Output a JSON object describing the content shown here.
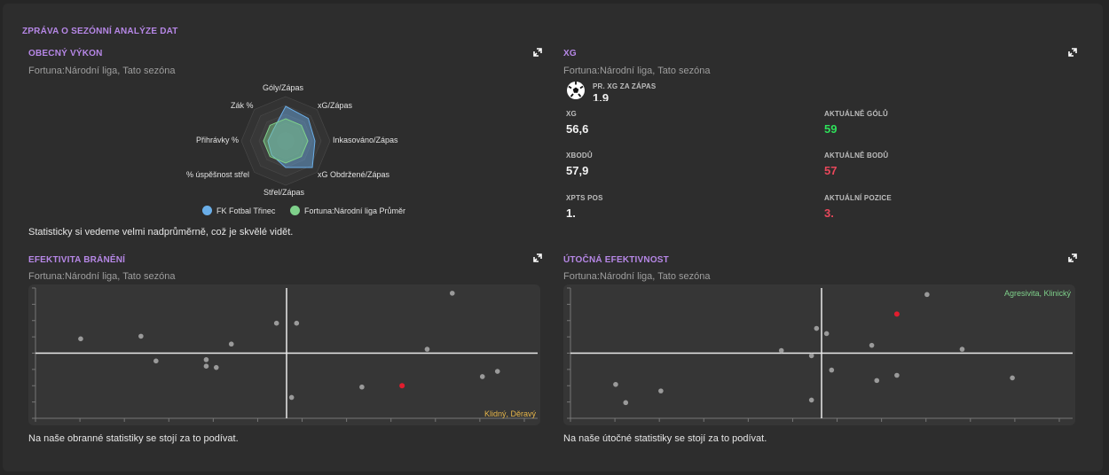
{
  "report": {
    "title": "ZPRÁVA O SEZÓNNÍ ANALÝZE DAT"
  },
  "general": {
    "title": "OBECNÝ VÝKON",
    "subtitle": "Fortuna:Národní liga, Tato sezóna",
    "axes": [
      "Góly/Zápas",
      "xG/Zápas",
      "Inkasováno/Zápas",
      "xG Obdržené/Zápas",
      "Střel/Zápas",
      "% úspěšnost střel",
      "Přihrávky %",
      "Zák %"
    ],
    "series": [
      {
        "name": "FK Fotbal Třinec",
        "color": "#6aaee8",
        "values": [
          0.78,
          0.72,
          0.66,
          0.85,
          0.6,
          0.45,
          0.4,
          0.38
        ]
      },
      {
        "name": "Fortuna:Národní liga Průměr",
        "color": "#7fd18b",
        "values": [
          0.5,
          0.5,
          0.5,
          0.5,
          0.5,
          0.5,
          0.5,
          0.5
        ]
      }
    ],
    "summary": "Statisticky si vedeme velmi nadprůměrně, což je skvělé vidět."
  },
  "xg": {
    "title": "XG",
    "subtitle": "Fortuna:Národní liga, Tato sezóna",
    "avg_label": "PR. XG ZA ZÁPAS",
    "avg_value": "1.9",
    "stats": [
      {
        "label": "XG",
        "value": "56,6",
        "color": "#f2f2f2"
      },
      {
        "label": "AKTUÁLNĚ GÓLŮ",
        "value": "59",
        "color": "#2ee05a"
      },
      {
        "label": "XBODŮ",
        "value": "57,9",
        "color": "#f2f2f2"
      },
      {
        "label": "AKTUÁLNĚ BODŮ",
        "value": "57",
        "color": "#e8475a"
      },
      {
        "label": "XPTS POS",
        "value": "1.",
        "color": "#f2f2f2"
      },
      {
        "label": "AKTUÁLNÍ POZICE",
        "value": "3.",
        "color": "#e8475a"
      }
    ]
  },
  "defense": {
    "title": "EFEKTIVITA BRÁNĚNÍ",
    "subtitle": "Fortuna:Národní liga, Tato sezóna",
    "quadrant_label": "Klidný, Děravý",
    "quadrant_color": "#e7b64a",
    "summary": "Na naše obranné statistiky se stojí za to podívat.",
    "chart_data": {
      "type": "scatter",
      "xlim": [
        0,
        1
      ],
      "ylim": [
        0,
        1
      ],
      "x_mid": 0.5,
      "y_mid": 0.5,
      "points": [
        {
          "x": 0.09,
          "y": 0.61
        },
        {
          "x": 0.21,
          "y": 0.63
        },
        {
          "x": 0.24,
          "y": 0.44
        },
        {
          "x": 0.34,
          "y": 0.45
        },
        {
          "x": 0.34,
          "y": 0.4
        },
        {
          "x": 0.36,
          "y": 0.39
        },
        {
          "x": 0.39,
          "y": 0.57
        },
        {
          "x": 0.48,
          "y": 0.73
        },
        {
          "x": 0.52,
          "y": 0.73
        },
        {
          "x": 0.51,
          "y": 0.16
        },
        {
          "x": 0.65,
          "y": 0.24
        },
        {
          "x": 0.78,
          "y": 0.53
        },
        {
          "x": 0.83,
          "y": 0.96
        },
        {
          "x": 0.89,
          "y": 0.32
        },
        {
          "x": 0.92,
          "y": 0.36
        },
        {
          "x": 0.73,
          "y": 0.25,
          "highlight": true
        }
      ]
    }
  },
  "attack": {
    "title": "ÚTOČNÁ EFEKTIVNOST",
    "subtitle": "Fortuna:Národní liga, Tato sezóna",
    "quadrant_label": "Agresivita, Klinický",
    "quadrant_color": "#7fd18b",
    "summary": "Na naše útočné statistiky se stojí za to podívat.",
    "chart_data": {
      "type": "scatter",
      "xlim": [
        0,
        1
      ],
      "ylim": [
        0,
        1
      ],
      "x_mid": 0.5,
      "y_mid": 0.5,
      "points": [
        {
          "x": 0.09,
          "y": 0.26
        },
        {
          "x": 0.11,
          "y": 0.12
        },
        {
          "x": 0.18,
          "y": 0.21
        },
        {
          "x": 0.42,
          "y": 0.52
        },
        {
          "x": 0.48,
          "y": 0.14
        },
        {
          "x": 0.48,
          "y": 0.48
        },
        {
          "x": 0.49,
          "y": 0.69
        },
        {
          "x": 0.51,
          "y": 0.65
        },
        {
          "x": 0.52,
          "y": 0.37
        },
        {
          "x": 0.6,
          "y": 0.56
        },
        {
          "x": 0.61,
          "y": 0.29
        },
        {
          "x": 0.65,
          "y": 0.33
        },
        {
          "x": 0.71,
          "y": 0.95
        },
        {
          "x": 0.78,
          "y": 0.53
        },
        {
          "x": 0.88,
          "y": 0.31
        },
        {
          "x": 0.65,
          "y": 0.8,
          "highlight": true
        }
      ]
    }
  }
}
